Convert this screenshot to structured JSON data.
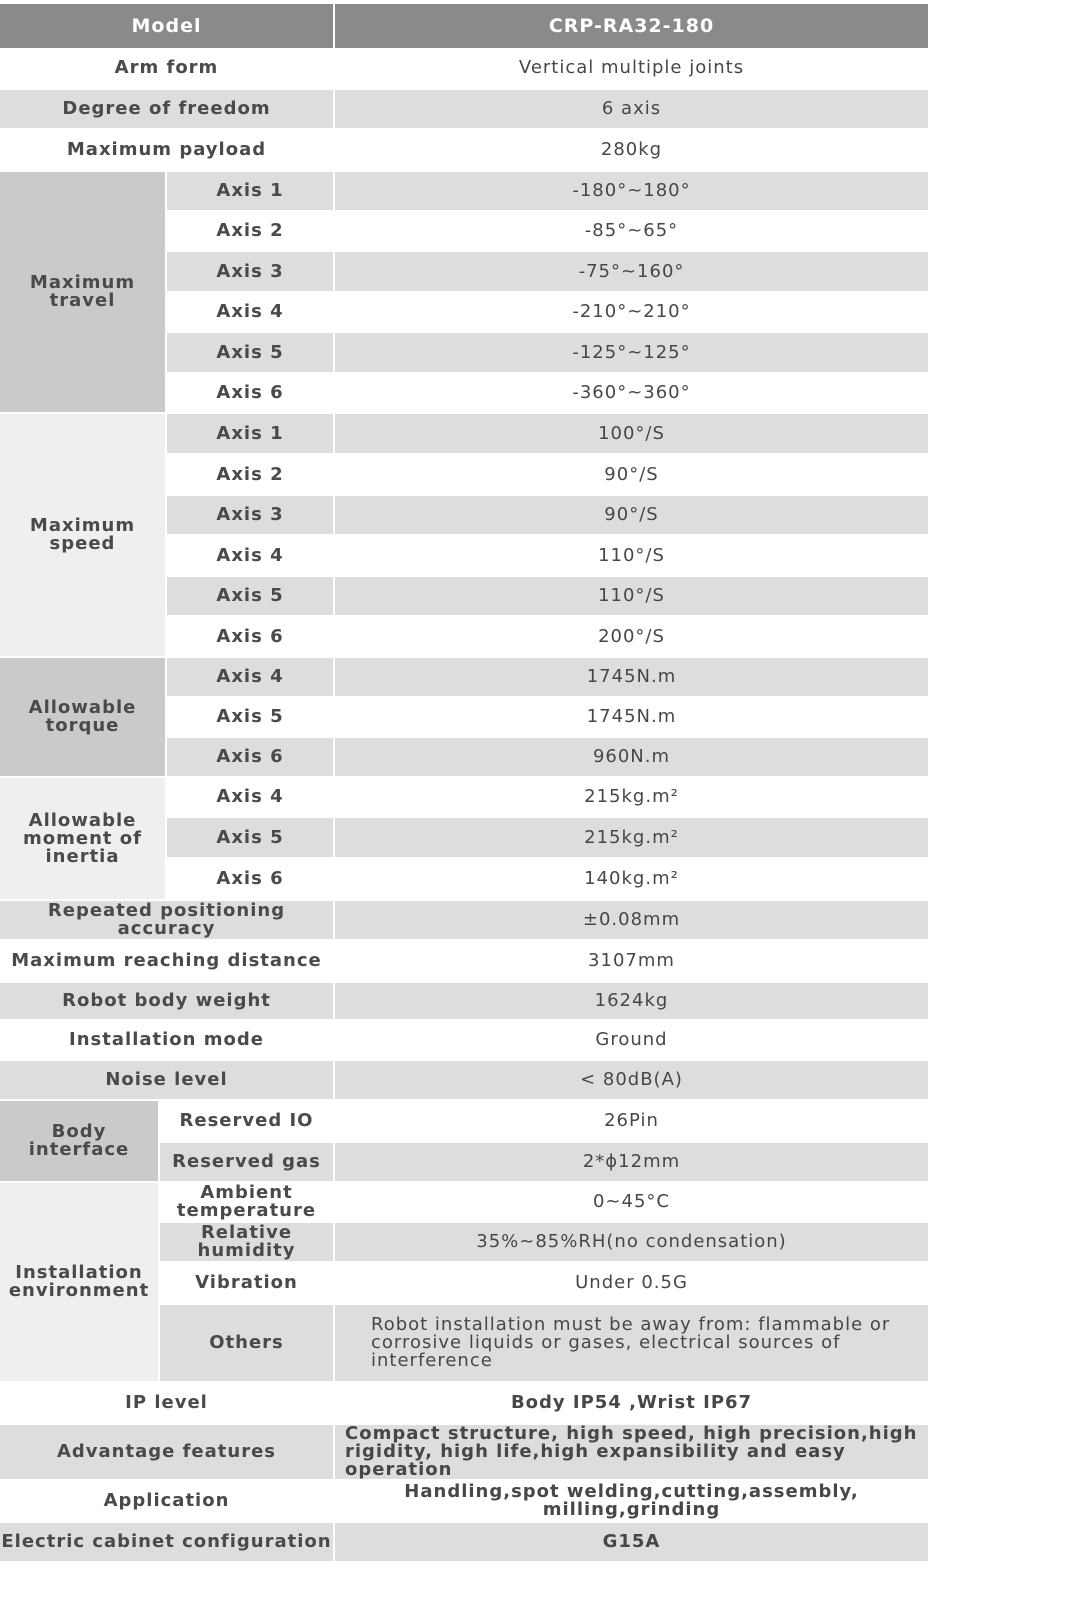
{
  "colors": {
    "header": "#8a8a8a",
    "row_shaded": "#dcdddd",
    "group_dark": "#c9cacb",
    "group_light": "#efefef",
    "text": "#454545"
  },
  "header": {
    "label": "Model",
    "value": "CRP-RA32-180"
  },
  "rows": [
    {
      "label": "Arm form",
      "value": "Vertical multiple joints"
    },
    {
      "label": "Degree of freedom",
      "value": "6 axis"
    },
    {
      "label": "Maximum payload",
      "value": "280kg"
    },
    {
      "label": "Maximum travel",
      "items": [
        {
          "label": "Axis 1",
          "value": "-180°~180°"
        },
        {
          "label": "Axis 2",
          "value": "-85°~65°"
        },
        {
          "label": "Axis 3",
          "value": "-75°~160°"
        },
        {
          "label": "Axis 4",
          "value": "-210°~210°"
        },
        {
          "label": "Axis 5",
          "value": "-125°~125°"
        },
        {
          "label": "Axis 6",
          "value": "-360°~360°"
        }
      ]
    },
    {
      "label": "Maximum speed",
      "items": [
        {
          "label": "Axis 1",
          "value": "100°/S"
        },
        {
          "label": "Axis 2",
          "value": "90°/S"
        },
        {
          "label": "Axis 3",
          "value": "90°/S"
        },
        {
          "label": "Axis 4",
          "value": "110°/S"
        },
        {
          "label": "Axis 5",
          "value": "110°/S"
        },
        {
          "label": "Axis 6",
          "value": "200°/S"
        }
      ]
    },
    {
      "label": "Allowable torque",
      "items": [
        {
          "label": "Axis 4",
          "value": "1745N.m"
        },
        {
          "label": "Axis 5",
          "value": "1745N.m"
        },
        {
          "label": "Axis 6",
          "value": "960N.m"
        }
      ]
    },
    {
      "label": "Allowable moment of inertia",
      "items": [
        {
          "label": "Axis 4",
          "value": "215kg.m²"
        },
        {
          "label": "Axis 5",
          "value": "215kg.m²"
        },
        {
          "label": "Axis 6",
          "value": "140kg.m²"
        }
      ]
    },
    {
      "label": "Repeated positioning accuracy",
      "value": "±0.08mm"
    },
    {
      "label": "Maximum reaching distance",
      "value": "3107mm"
    },
    {
      "label": "Robot body weight",
      "value": "1624kg"
    },
    {
      "label": "Installation mode",
      "value": "Ground"
    },
    {
      "label": "Noise level",
      "value": "< 80dB(A)"
    },
    {
      "label": "Body interface",
      "items": [
        {
          "label": "Reserved IO",
          "value": "26Pin"
        },
        {
          "label": "Reserved gas",
          "value": "2*ϕ12mm"
        }
      ]
    },
    {
      "label": "Installation environment",
      "items": [
        {
          "label": "Ambient temperature",
          "value": "0~45°C"
        },
        {
          "label": "Relative humidity",
          "value": "35%~85%RH(no condensation)"
        },
        {
          "label": "Vibration",
          "value": "Under 0.5G"
        },
        {
          "label": "Others",
          "value": "Robot installation must be away from: flammable or corrosive liquids or gases, electrical sources of interference"
        }
      ]
    },
    {
      "label": "IP level",
      "value": "Body IP54 ,Wrist IP67"
    },
    {
      "label": "Advantage features",
      "value": "Compact structure, high speed, high precision,high rigidity, high life,high expansibility and easy operation"
    },
    {
      "label": "Application",
      "value": "Handling,spot welding,cutting,assembly, milling,grinding"
    },
    {
      "label": "Electric cabinet configuration",
      "value": "G15A"
    }
  ]
}
